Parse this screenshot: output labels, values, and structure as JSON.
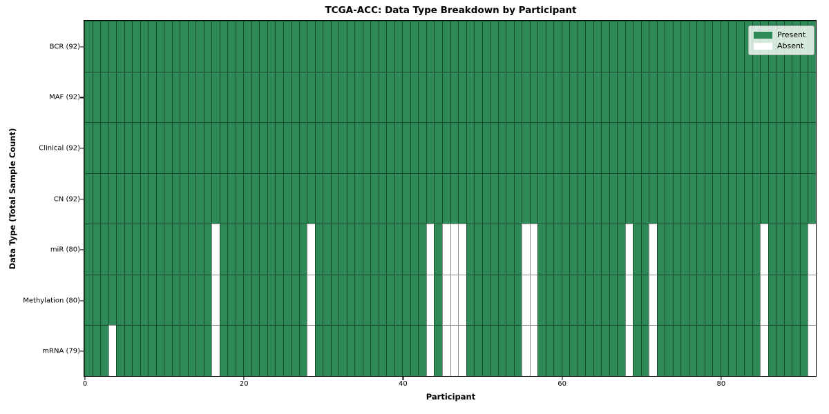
{
  "figure": {
    "title": "TCGA-ACC: Data Type Breakdown by Participant",
    "x_axis_label": "Participant",
    "y_axis_label": "Data Type (Total Sample Count)"
  },
  "legend": {
    "items": [
      {
        "label": "Present",
        "color": "#2e8b57"
      },
      {
        "label": "Absent",
        "color": "#ffffff"
      }
    ]
  },
  "chart_data": {
    "type": "heatmap",
    "title": "TCGA-ACC: Data Type Breakdown by Participant",
    "xlabel": "Participant",
    "ylabel": "Data Type (Total Sample Count)",
    "n_participants": 92,
    "x_range": [
      0,
      92
    ],
    "x_ticks": [
      0,
      20,
      40,
      60,
      80
    ],
    "grid": true,
    "legend_position": "upper right",
    "colors": {
      "present": "#2e8b57",
      "absent": "#ffffff",
      "gridline": "rgba(0,0,0,0.45)"
    },
    "rows": [
      {
        "label": "BCR (92)",
        "data_type": "BCR",
        "present_count": 92,
        "absent_participants": []
      },
      {
        "label": "MAF (92)",
        "data_type": "MAF",
        "present_count": 92,
        "absent_participants": []
      },
      {
        "label": "Clinical (92)",
        "data_type": "Clinical",
        "present_count": 92,
        "absent_participants": []
      },
      {
        "label": "CN (92)",
        "data_type": "CN",
        "present_count": 92,
        "absent_participants": []
      },
      {
        "label": "miR (80)",
        "data_type": "miR",
        "present_count": 80,
        "absent_participants": [
          16,
          28,
          43,
          45,
          46,
          47,
          55,
          56,
          68,
          71,
          85,
          91
        ]
      },
      {
        "label": "Methylation (80)",
        "data_type": "Methylation",
        "present_count": 80,
        "absent_participants": [
          16,
          28,
          43,
          45,
          46,
          47,
          55,
          56,
          68,
          71,
          85,
          91
        ]
      },
      {
        "label": "mRNA (79)",
        "data_type": "mRNA",
        "present_count": 79,
        "absent_participants": [
          3,
          16,
          28,
          43,
          45,
          46,
          47,
          55,
          56,
          68,
          71,
          85,
          91
        ]
      }
    ]
  }
}
